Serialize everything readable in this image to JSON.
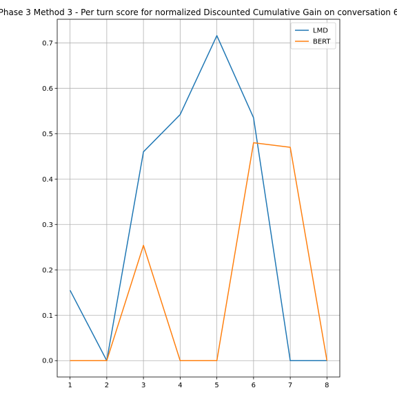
{
  "chart_data": {
    "type": "line",
    "title": "Phase 3 Method 3 - Per turn score for normalized Discounted Cumulative Gain on conversation 6",
    "xlabel": "",
    "ylabel": "",
    "x": [
      1,
      2,
      3,
      4,
      5,
      6,
      7,
      8
    ],
    "xticks": [
      "1",
      "2",
      "3",
      "4",
      "5",
      "6",
      "7",
      "8"
    ],
    "yticks": [
      "0.0",
      "0.1",
      "0.2",
      "0.3",
      "0.4",
      "0.5",
      "0.6",
      "0.7"
    ],
    "xlim": [
      0.65,
      8.35
    ],
    "ylim": [
      -0.036,
      0.752
    ],
    "grid": true,
    "legend_position": "top-right",
    "series": [
      {
        "name": "LMD",
        "color": "#1f77b4",
        "values": [
          0.155,
          0.0,
          0.46,
          0.542,
          0.716,
          0.535,
          0.0,
          0.0
        ]
      },
      {
        "name": "BERT",
        "color": "#ff7f0e",
        "values": [
          0.0,
          0.0,
          0.254,
          0.0,
          0.0,
          0.48,
          0.47,
          0.0
        ]
      }
    ]
  }
}
